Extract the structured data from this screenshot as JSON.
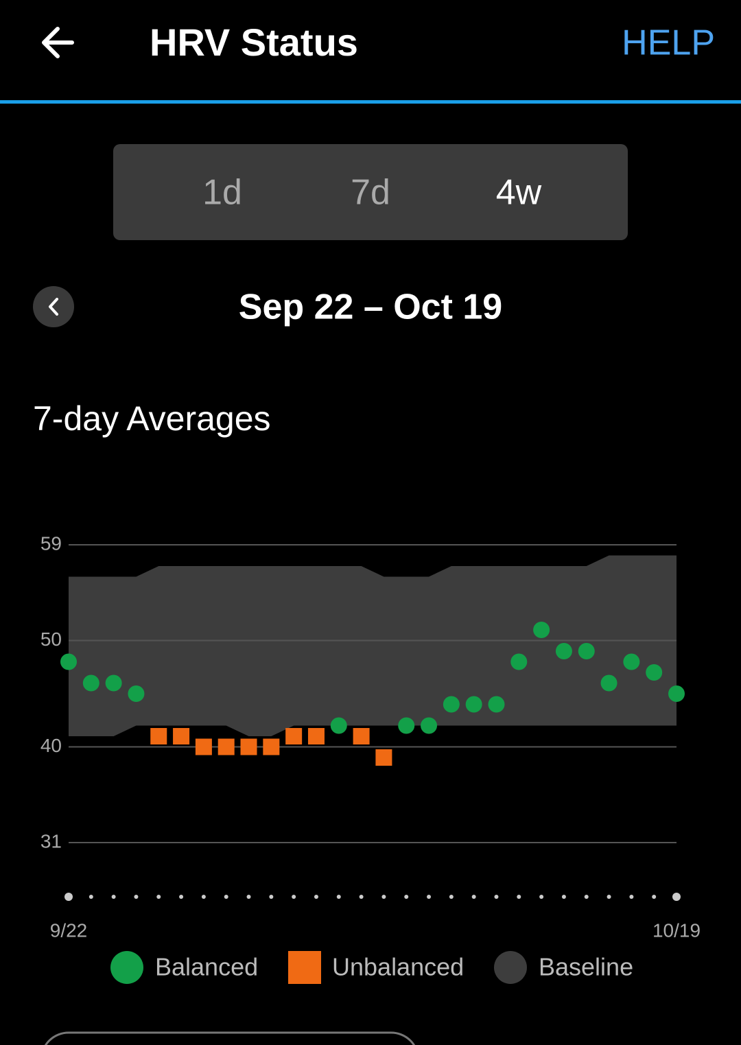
{
  "header": {
    "title": "HRV Status",
    "action": "HELP"
  },
  "tabs": [
    "1d",
    "7d",
    "4w"
  ],
  "selected_tab": 2,
  "date_range": "Sep 22 – Oct 19",
  "section_title": "7-day Averages",
  "chart_data": {
    "type": "scatter",
    "categories": [
      "9/22",
      null,
      null,
      null,
      null,
      null,
      null,
      null,
      null,
      null,
      null,
      null,
      null,
      null,
      null,
      null,
      null,
      null,
      null,
      null,
      null,
      null,
      null,
      null,
      null,
      null,
      null,
      "10/19"
    ],
    "ylim": [
      31,
      59
    ],
    "yticks": [
      31,
      40,
      50,
      59
    ],
    "grid": true,
    "series": [
      {
        "name": "Balanced",
        "color": "#13a049",
        "marker": "circle",
        "values": [
          48,
          46,
          46,
          45,
          null,
          null,
          null,
          null,
          null,
          null,
          null,
          null,
          42,
          null,
          null,
          42,
          42,
          44,
          44,
          44,
          48,
          51,
          49,
          49,
          46,
          48,
          47,
          45
        ]
      },
      {
        "name": "Unbalanced",
        "color": "#f06a14",
        "marker": "square",
        "values": [
          null,
          null,
          null,
          null,
          41,
          41,
          40,
          40,
          40,
          40,
          41,
          41,
          null,
          41,
          39,
          null,
          null,
          null,
          null,
          null,
          null,
          null,
          null,
          null,
          null,
          null,
          null,
          null
        ]
      },
      {
        "name": "Baseline",
        "color": "#3d3d3d",
        "marker": "band",
        "high": [
          56,
          56,
          56,
          56,
          57,
          57,
          57,
          57,
          57,
          57,
          57,
          57,
          57,
          57,
          56,
          56,
          56,
          57,
          57,
          57,
          57,
          57,
          57,
          57,
          58,
          58,
          58,
          58
        ],
        "low": [
          41,
          41,
          41,
          42,
          42,
          42,
          42,
          42,
          41,
          41,
          42,
          42,
          42,
          42,
          42,
          42,
          42,
          42,
          42,
          42,
          42,
          42,
          42,
          42,
          42,
          42,
          42,
          42
        ]
      }
    ]
  }
}
